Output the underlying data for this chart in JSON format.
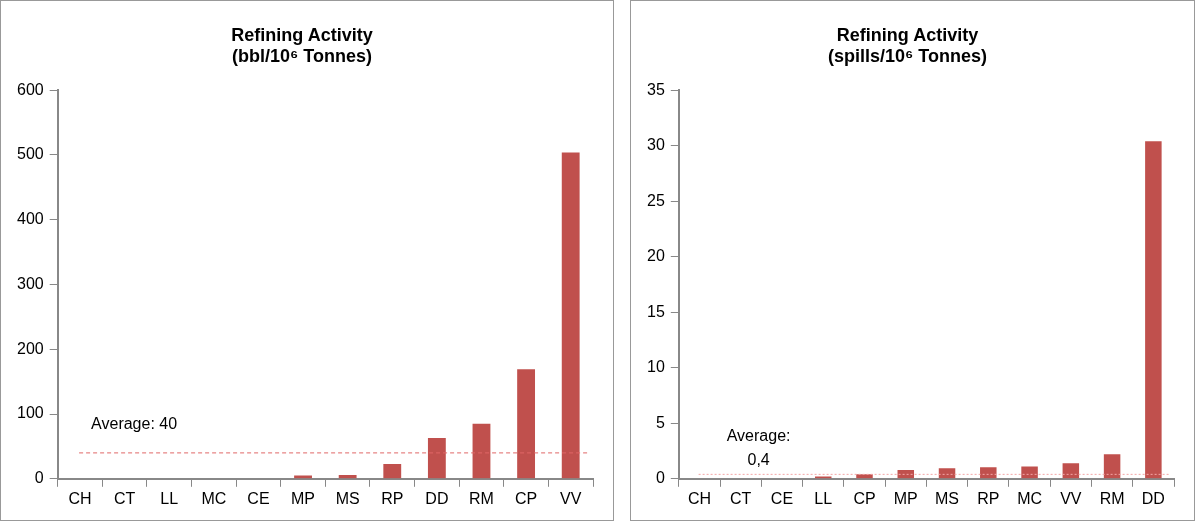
{
  "chart_data": [
    {
      "type": "bar",
      "title": "Refining Activity\n(bbl/10⁶ Tonnes)",
      "categories": [
        "CH",
        "CT",
        "LL",
        "MC",
        "CE",
        "MP",
        "MS",
        "RP",
        "DD",
        "RM",
        "CP",
        "VV"
      ],
      "values": [
        0,
        0,
        0,
        0,
        0,
        5,
        6,
        23,
        63,
        85,
        169,
        504
      ],
      "color": "#c0504d",
      "ylim": [
        0,
        600
      ],
      "yticks": [
        0,
        100,
        200,
        300,
        400,
        500,
        600
      ],
      "grid": false,
      "legend": false,
      "ref_lines": [
        {
          "axis": "y",
          "value": 40,
          "label": "Average: 40",
          "color": "#e06666",
          "line_style": "dashed"
        }
      ]
    },
    {
      "type": "bar",
      "title": "Refining Activity\n(spills/10⁶ Tonnes)",
      "categories": [
        "CH",
        "CT",
        "CE",
        "LL",
        "CP",
        "MP",
        "MS",
        "RP",
        "MC",
        "VV",
        "RM",
        "DD"
      ],
      "values": [
        0,
        0,
        0,
        0.2,
        0.4,
        0.8,
        0.95,
        1.05,
        1.1,
        1.4,
        2.2,
        30.4
      ],
      "color": "#c0504d",
      "ylim": [
        0,
        35
      ],
      "yticks": [
        0,
        5,
        10,
        15,
        20,
        25,
        30,
        35
      ],
      "grid": false,
      "legend": false,
      "ref_lines": [
        {
          "axis": "y",
          "value": 0.4,
          "label": "Average: 0,4",
          "color": "#f4a6a6",
          "line_style": "dotted"
        }
      ]
    }
  ]
}
